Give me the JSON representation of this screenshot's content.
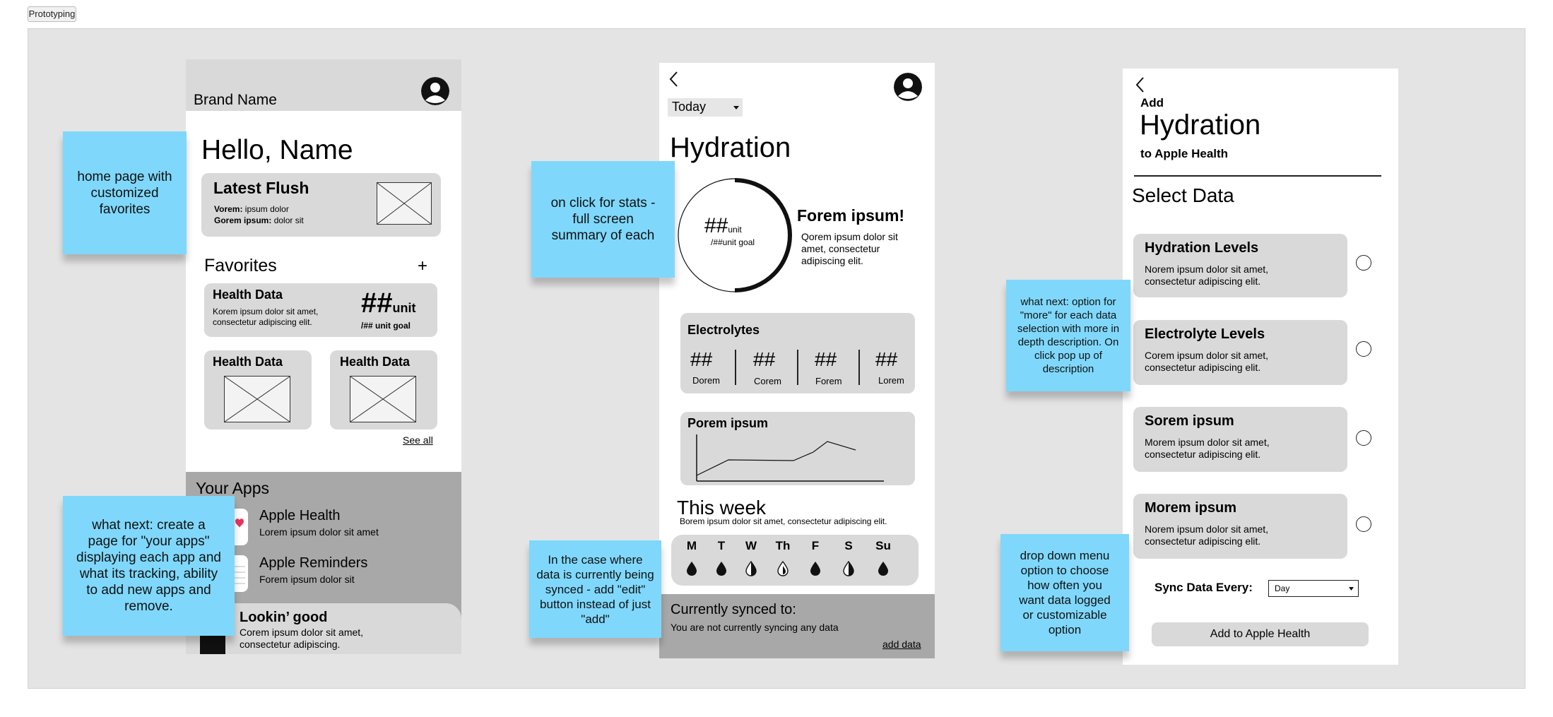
{
  "top_tab": "Prototyping",
  "stickies": {
    "home": "home page with customized favorites",
    "apps": "what next: create a page for \"your apps\" displaying each app and what its tracking, ability to add new apps and remove.",
    "stats": "on click for stats - full screen summary of each",
    "synced": "In the case where data is currently being synced - add \"edit\" button instead of just \"add\"",
    "more": "what next: option for \"more\" for each data selection with more in depth description. On click pop up of description",
    "dropdown": "drop down menu option to choose how often you want data logged or customizable option"
  },
  "home": {
    "brand": "Brand Name",
    "greeting": "Hello, Name",
    "latest_flush": {
      "title": "Latest Flush",
      "row1_key": "Vorem:",
      "row1_val": " ipsum dolor",
      "row2_key": "Gorem ipsum:",
      "row2_val": " dolor sit"
    },
    "favorites_title": "Favorites",
    "add_symbol": "+",
    "fav_card": {
      "title": "Health Data",
      "desc": "Korem ipsum dolor sit amet, consectetur adipiscing elit.",
      "value": "##",
      "unit": "unit",
      "goal": "/## unit goal"
    },
    "small_cards": [
      {
        "title": "Health Data"
      },
      {
        "title": "Health Data"
      }
    ],
    "see_all": "See all",
    "apps_title": "Your Apps",
    "apps": [
      {
        "name": "Apple Health",
        "desc": "Lorem ipsum dolor sit amet"
      },
      {
        "name": "Apple Reminders",
        "desc": "Forem ipsum dolor sit"
      }
    ],
    "lookin": {
      "title": "Lookin’ good",
      "desc": "Corem ipsum dolor sit amet, consectetur adipiscing."
    }
  },
  "hydration": {
    "back": "<",
    "period": "Today",
    "title": "Hydration",
    "ring": {
      "value": "##",
      "unit": "unit",
      "goal": "/##unit goal",
      "progress": 0.5
    },
    "headline": "Forem ipsum!",
    "body": "Qorem ipsum dolor sit amet, consectetur adipiscing elit.",
    "electrolytes": {
      "title": "Electrolytes",
      "items": [
        {
          "value": "##",
          "label": "Dorem"
        },
        {
          "value": "##",
          "label": "Corem"
        },
        {
          "value": "##",
          "label": "Forem"
        },
        {
          "value": "##",
          "label": "Lorem"
        }
      ]
    },
    "porem_title": "Porem ipsum",
    "week": {
      "title": "This week",
      "desc": "Borem ipsum dolor sit amet, consectetur adipiscing elit.",
      "days": [
        {
          "label": "M",
          "fill": "full"
        },
        {
          "label": "T",
          "fill": "full"
        },
        {
          "label": "W",
          "fill": "half"
        },
        {
          "label": "Th",
          "fill": "quarter"
        },
        {
          "label": "F",
          "fill": "full"
        },
        {
          "label": "S",
          "fill": "half"
        },
        {
          "label": "Su",
          "fill": "full"
        }
      ]
    },
    "synced_title": "Currently synced to:",
    "synced_desc": "You are not currently syncing any data",
    "add_data": "add data"
  },
  "add": {
    "back": "<",
    "add_label": "Add",
    "title": "Hydration",
    "subtitle": "to Apple Health",
    "select_title": "Select Data",
    "options": [
      {
        "title": "Hydration Levels",
        "desc": "Norem ipsum dolor sit amet, consectetur adipiscing elit."
      },
      {
        "title": "Electrolyte Levels",
        "desc": "Corem ipsum dolor sit amet, consectetur adipiscing elit."
      },
      {
        "title": "Sorem ipsum",
        "desc": "Morem ipsum dolor sit amet, consectetur adipiscing elit."
      },
      {
        "title": "Morem ipsum",
        "desc": "Norem ipsum dolor sit amet, consectetur adipiscing elit."
      }
    ],
    "sync_label": "Sync Data Every:",
    "sync_value": "Day",
    "cta": "Add to Apple Health"
  }
}
